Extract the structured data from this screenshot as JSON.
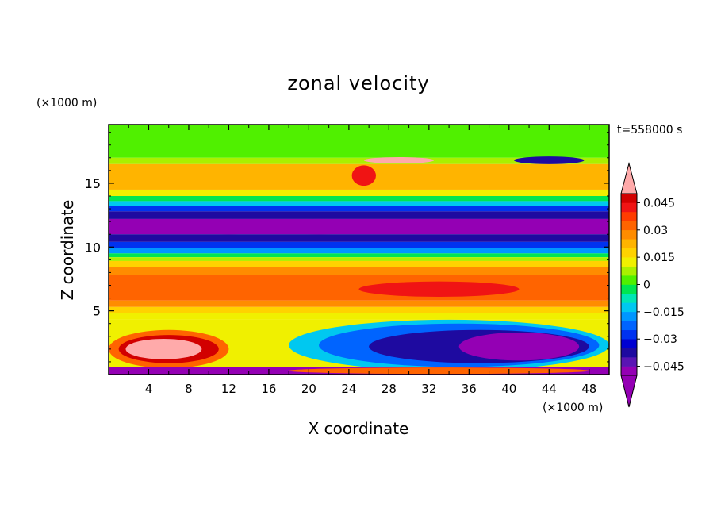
{
  "chart_data": {
    "type": "heatmap",
    "title": "zonal velocity",
    "xlabel": "X coordinate",
    "ylabel": "Z coordinate",
    "x_unit": "(×1000 m)",
    "y_unit": "(×1000 m)",
    "time_label": "t=558000 s",
    "xlim": [
      0,
      50
    ],
    "ylim": [
      0,
      19.6
    ],
    "x_ticks": [
      4,
      8,
      12,
      16,
      20,
      24,
      28,
      32,
      36,
      40,
      44,
      48
    ],
    "y_ticks": [
      5,
      10,
      15
    ],
    "colorbar": {
      "levels": [
        -0.05,
        -0.045,
        -0.04,
        -0.035,
        -0.03,
        -0.025,
        -0.02,
        -0.015,
        -0.01,
        -0.005,
        0,
        0.005,
        0.01,
        0.015,
        0.02,
        0.025,
        0.03,
        0.035,
        0.04,
        0.045,
        0.05
      ],
      "labels": [
        "0.045",
        "0.03",
        "0.015",
        "0",
        "−0.015",
        "−0.03",
        "−0.045"
      ],
      "label_values": [
        0.045,
        0.03,
        0.015,
        0,
        -0.015,
        -0.03,
        -0.045
      ],
      "colors": [
        "#9400b4",
        "#5a14b4",
        "#1e0aa0",
        "#0000d2",
        "#0032f0",
        "#0064ff",
        "#0096ff",
        "#00c8f0",
        "#00e6b4",
        "#00e650",
        "#50f000",
        "#aaf000",
        "#f0f000",
        "#ffd200",
        "#ffb400",
        "#ff8c00",
        "#ff6400",
        "#ff3c00",
        "#f01414",
        "#d20000"
      ],
      "under_color": "#9400b4",
      "over_color": "#ffaaaa"
    },
    "regions": [
      {
        "shape": "band",
        "z": [
          18.2,
          19.6
        ],
        "value": 0.002
      },
      {
        "shape": "band",
        "z": [
          17.0,
          18.2
        ],
        "value": 0.004
      },
      {
        "shape": "band",
        "z": [
          16.5,
          17.0
        ],
        "value": 0.008
      },
      {
        "shape": "band",
        "z": [
          14.5,
          16.5
        ],
        "value": 0.022
      },
      {
        "shape": "band",
        "z": [
          14.0,
          14.5
        ],
        "value": 0.012
      },
      {
        "shape": "band",
        "z": [
          13.6,
          14.0
        ],
        "value": -0.003
      },
      {
        "shape": "band",
        "z": [
          13.2,
          13.6
        ],
        "value": -0.012
      },
      {
        "shape": "band",
        "z": [
          12.8,
          13.2
        ],
        "value": -0.028
      },
      {
        "shape": "band",
        "z": [
          12.2,
          12.8
        ],
        "value": -0.038
      },
      {
        "shape": "band",
        "z": [
          11.0,
          12.2
        ],
        "value": -0.046
      },
      {
        "shape": "band",
        "z": [
          10.4,
          11.0
        ],
        "value": -0.04
      },
      {
        "shape": "band",
        "z": [
          9.9,
          10.4
        ],
        "value": -0.03
      },
      {
        "shape": "band",
        "z": [
          9.5,
          9.9
        ],
        "value": -0.018
      },
      {
        "shape": "band",
        "z": [
          9.2,
          9.5
        ],
        "value": -0.005
      },
      {
        "shape": "band",
        "z": [
          8.9,
          9.2
        ],
        "value": 0.008
      },
      {
        "shape": "band",
        "z": [
          8.4,
          8.9
        ],
        "value": 0.018
      },
      {
        "shape": "band",
        "z": [
          7.8,
          8.4
        ],
        "value": 0.026
      },
      {
        "shape": "band",
        "z": [
          5.8,
          7.8
        ],
        "value": 0.033
      },
      {
        "shape": "band",
        "z": [
          5.3,
          5.8
        ],
        "value": 0.026
      },
      {
        "shape": "band",
        "z": [
          4.8,
          5.3
        ],
        "value": 0.017
      },
      {
        "shape": "band",
        "z": [
          4.3,
          4.8
        ],
        "value": 0.012
      },
      {
        "shape": "band",
        "z": [
          0,
          4.3
        ],
        "value": 0.01
      },
      {
        "shape": "ellipse",
        "cx": 12,
        "cz": 11.6,
        "rx": 5,
        "rz": 0.6,
        "value": -0.046
      },
      {
        "shape": "ellipse",
        "cx": 21,
        "cz": 11.6,
        "rx": 7,
        "rz": 0.6,
        "value": -0.046
      },
      {
        "shape": "ellipse",
        "cx": 33,
        "cz": 6.7,
        "rx": 8,
        "rz": 0.6,
        "value": 0.04
      },
      {
        "shape": "ellipse",
        "cx": 34,
        "cz": 2.3,
        "rx": 16,
        "rz": 2.0,
        "value": -0.012
      },
      {
        "shape": "ellipse",
        "cx": 35,
        "cz": 2.3,
        "rx": 14,
        "rz": 1.7,
        "value": -0.025
      },
      {
        "shape": "ellipse",
        "cx": 37,
        "cz": 2.2,
        "rx": 11,
        "rz": 1.3,
        "value": -0.04
      },
      {
        "shape": "ellipse",
        "cx": 41,
        "cz": 2.2,
        "rx": 6,
        "rz": 1.1,
        "value": -0.048
      },
      {
        "shape": "ellipse",
        "cx": 6,
        "cz": 2.0,
        "rx": 6,
        "rz": 1.5,
        "value": 0.032
      },
      {
        "shape": "ellipse",
        "cx": 6,
        "cz": 2.0,
        "rx": 5,
        "rz": 1.1,
        "value": 0.045
      },
      {
        "shape": "ellipse",
        "cx": 5.5,
        "cz": 2.0,
        "rx": 3.8,
        "rz": 0.8,
        "value": 0.06
      },
      {
        "shape": "ellipse",
        "cx": 29,
        "cz": 16.8,
        "rx": 3.5,
        "rz": 0.25,
        "value": 0.06
      },
      {
        "shape": "ellipse",
        "cx": 44,
        "cz": 16.8,
        "rx": 3.5,
        "rz": 0.3,
        "value": -0.04
      },
      {
        "shape": "ellipse",
        "cx": 25.5,
        "cz": 15.6,
        "rx": 1.2,
        "rz": 0.8,
        "value": 0.04
      },
      {
        "shape": "band",
        "z": [
          0,
          0.6
        ],
        "value": -0.05
      },
      {
        "shape": "ellipse",
        "cx": 33,
        "cz": 0.3,
        "rx": 15,
        "rz": 0.25,
        "value": 0.03
      }
    ]
  }
}
